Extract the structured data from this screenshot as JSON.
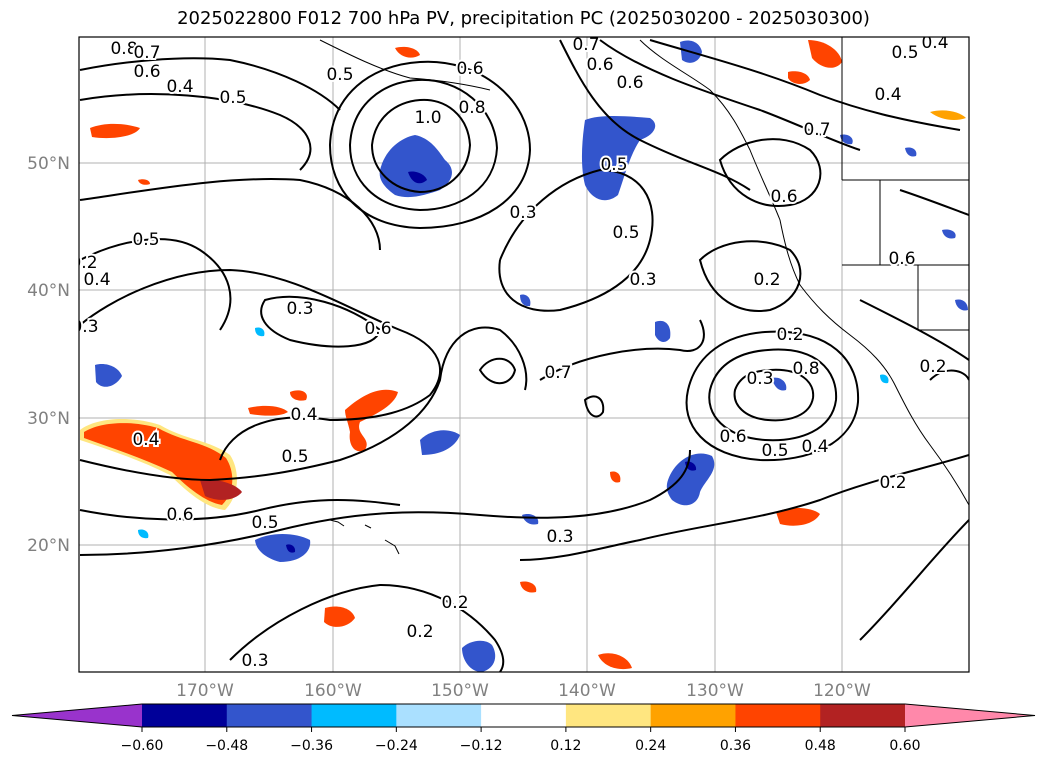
{
  "title": "2025022800 F012 700 hPa PV, precipitation PC (2025030200 - 2025030300)",
  "map": {
    "lat_labels": [
      "50°N",
      "40°N",
      "30°N",
      "20°N"
    ],
    "lon_labels": [
      "170°W",
      "160°W",
      "150°W",
      "140°W",
      "130°W",
      "120°W"
    ],
    "gridline_color": "#b0b0b0"
  },
  "colorbar": {
    "ticks": [
      "−0.60",
      "−0.48",
      "−0.36",
      "−0.24",
      "−0.12",
      "0.12",
      "0.24",
      "0.36",
      "0.48",
      "0.60"
    ],
    "colors": [
      "#9933cc",
      "#000099",
      "#3355cc",
      "#00bbff",
      "#aae0ff",
      "#ffffff",
      "#ffe680",
      "#ffa200",
      "#ff4400",
      "#b22222",
      "#ff88aa"
    ]
  },
  "contour_labels": [
    "0.8",
    "0.7",
    "0.6",
    "0.4",
    "0.5",
    "0.5",
    "0.6",
    "1.0",
    "0.8",
    "0.7",
    "0.6",
    "0.6",
    "0.4",
    "0.5",
    "0.4",
    "0.7",
    "0.6",
    "0.3",
    "0.5",
    "0.5",
    "0.3",
    "0.4",
    "0.3",
    "0.2",
    "0.3",
    "0.6",
    "0.2",
    "0.3",
    "0.8",
    "0.7",
    "0.4",
    "0.6",
    "0.5",
    "0.4",
    "0.5",
    "0.4",
    "0.6",
    "0.5",
    "0.3",
    "0.2",
    "0.2",
    "0.2",
    "0.3",
    "0.2",
    "0.6",
    "0.5",
    "0.2"
  ]
}
